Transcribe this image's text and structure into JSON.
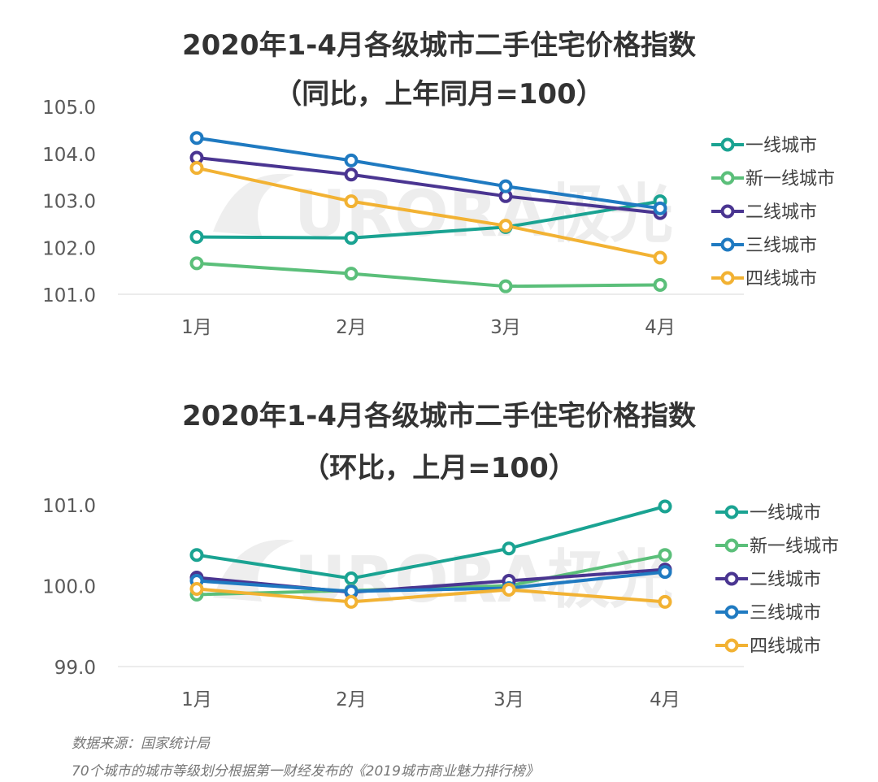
{
  "titles": {
    "c1_line1": "2020年1-4月各级城市二手住宅价格指数",
    "c1_line2": "（同比，上年同月=100）",
    "c2_line1": "2020年1-4月各级城市二手住宅价格指数",
    "c2_line2": "（环比，上月=100）"
  },
  "colors": {
    "一线城市": "#1aa392",
    "新一线城市": "#5bbf7a",
    "二线城市": "#4a3591",
    "三线城市": "#1f7ac1",
    "四线城市": "#f2b233"
  },
  "chart_data": [
    {
      "type": "line",
      "title": "2020年1-4月各级城市二手住宅价格指数（同比，上年同月=100）",
      "categories": [
        "1月",
        "2月",
        "3月",
        "4月"
      ],
      "ylim": [
        101.0,
        105.0
      ],
      "yticks": [
        "105.0",
        "104.0",
        "103.0",
        "102.0",
        "101.0"
      ],
      "legend_position": "right",
      "series": [
        {
          "name": "一线城市",
          "values": [
            102.22,
            102.2,
            102.43,
            102.98
          ]
        },
        {
          "name": "新一线城市",
          "values": [
            101.66,
            101.44,
            101.17,
            101.2
          ]
        },
        {
          "name": "二线城市",
          "values": [
            103.91,
            103.55,
            103.09,
            102.73
          ]
        },
        {
          "name": "三线城市",
          "values": [
            104.33,
            103.85,
            103.3,
            102.83
          ]
        },
        {
          "name": "四线城市",
          "values": [
            103.69,
            102.98,
            102.46,
            101.78
          ]
        }
      ]
    },
    {
      "type": "line",
      "title": "2020年1-4月各级城市二手住宅价格指数（环比，上月=100）",
      "categories": [
        "1月",
        "2月",
        "3月",
        "4月"
      ],
      "ylim": [
        99.0,
        101.0
      ],
      "yticks": [
        "101.0",
        "100.0",
        "99.0"
      ],
      "legend_position": "right",
      "series": [
        {
          "name": "一线城市",
          "values": [
            100.38,
            100.09,
            100.46,
            100.98
          ]
        },
        {
          "name": "新一线城市",
          "values": [
            99.89,
            99.94,
            100.0,
            100.38
          ]
        },
        {
          "name": "二线城市",
          "values": [
            100.1,
            99.92,
            100.06,
            100.2
          ]
        },
        {
          "name": "三线城市",
          "values": [
            100.06,
            99.93,
            99.97,
            100.17
          ]
        },
        {
          "name": "四线城市",
          "values": [
            99.96,
            99.8,
            99.95,
            99.8
          ]
        }
      ]
    }
  ],
  "watermark": "URORA极光",
  "source": {
    "line1": "数据来源：国家统计局",
    "line2": "70个城市的城市等级划分根据第一财经发布的《2019城市商业魅力排行榜》"
  }
}
